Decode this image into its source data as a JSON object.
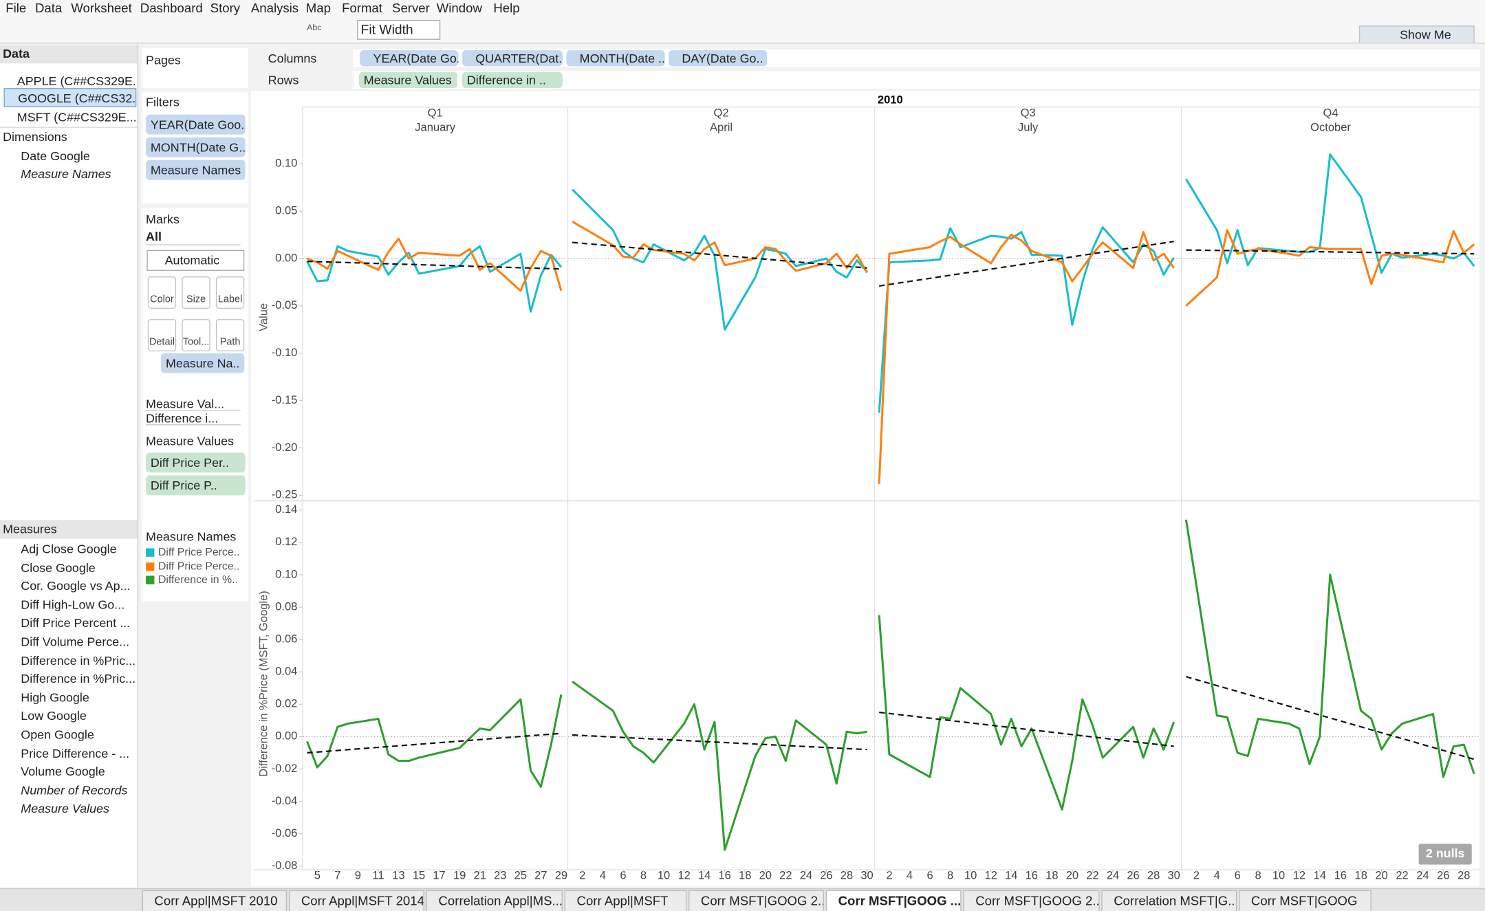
{
  "menu": [
    "File",
    "Data",
    "Worksheet",
    "Dashboard",
    "Story",
    "Analysis",
    "Map",
    "Format",
    "Server",
    "Window",
    "Help"
  ],
  "toolbar": {
    "fit": "Fit Width",
    "abc": "Abc",
    "show_me": "Show Me"
  },
  "data_pane": {
    "title": "Data",
    "sources": [
      "APPLE (C##CS329E...",
      "GOOGLE (C##CS32...",
      "MSFT (C##CS329E..."
    ],
    "dimensions_title": "Dimensions",
    "dimensions": [
      "Date Google",
      "Measure Names"
    ],
    "measures_title": "Measures",
    "measures": [
      "Adj Close Google",
      "Close Google",
      "Cor. Google vs Ap...",
      "Diff High-Low Go...",
      "Diff Price Percent ...",
      "Diff Volume Perce...",
      "Difference in %Pric...",
      "Difference in %Pric...",
      "High Google",
      "Low Google",
      "Open Google",
      "Price Difference - ...",
      "Volume Google",
      "Number of Records",
      "Measure Values"
    ]
  },
  "cards": {
    "pages": "Pages",
    "filters_title": "Filters",
    "filters": [
      "YEAR(Date Goo..",
      "MONTH(Date G..",
      "Measure Names"
    ],
    "marks_title": "Marks",
    "marks_all": "All",
    "mark_type": "Automatic",
    "mark_buttons": [
      "Color",
      "Size",
      "Label",
      "Detail",
      "Tool...",
      "Path"
    ],
    "marks_pill": "Measure Na..",
    "marks_layers": [
      "Measure Val...",
      "Difference i..."
    ],
    "measure_values_title": "Measure Values",
    "measure_values": [
      "Diff Price Per..",
      "Diff Price P.."
    ],
    "legend_title": "Measure Names"
  },
  "shelves": {
    "columns_label": "Columns",
    "columns": [
      "YEAR(Date Go..",
      "QUARTER(Dat..",
      "MONTH(Date ..",
      "DAY(Date Go.."
    ],
    "rows_label": "Rows",
    "rows": [
      "Measure Values",
      "Difference in .."
    ]
  },
  "tabs": [
    "Corr Appl|MSFT 2010",
    "Corr Appl|MSFT 2014",
    "Correlation Appl|MS...",
    "Corr Appl|MSFT",
    "Corr MSFT|GOOG 2...",
    "Corr MSFT|GOOG ...",
    "Corr MSFT|GOOG 2...",
    "Correlation MSFT|G...",
    "Corr MSFT|GOOG"
  ],
  "active_tab": 5,
  "chart_data": {
    "type": "line",
    "title": "2010",
    "y_label": "Value",
    "y2_label": "Difference in %Price (MSFT, Google)",
    "nulls_note": "2 nulls",
    "grid": false,
    "series": [
      {
        "name": "Diff Price Perce..",
        "color": "#17becf",
        "row": "top"
      },
      {
        "name": "Diff Price Perce..",
        "color": "#ff7f0e",
        "row": "top"
      },
      {
        "name": "Difference in %..",
        "color": "#2ca02c",
        "row": "bottom"
      }
    ],
    "ylim": [
      -0.255,
      0.128
    ],
    "yticks": [
      {
        "value": 0.1,
        "label": "0.10"
      },
      {
        "value": 0.05,
        "label": "0.05"
      },
      {
        "value": 0,
        "label": "0.00"
      },
      {
        "value": -0.05,
        "label": "-0.05"
      },
      {
        "value": -0.1,
        "label": "-0.10"
      },
      {
        "value": -0.15,
        "label": "-0.15"
      },
      {
        "value": -0.2,
        "label": "-0.20"
      },
      {
        "value": -0.25,
        "label": "-0.25"
      }
    ],
    "y2lim": [
      -0.082,
      0.145
    ],
    "y2ticks": [
      {
        "value": 0.14,
        "label": "0.14"
      },
      {
        "value": 0.12,
        "label": "0.12"
      },
      {
        "value": 0.1,
        "label": "0.10"
      },
      {
        "value": 0.08,
        "label": "0.08"
      },
      {
        "value": 0.06,
        "label": "0.06"
      },
      {
        "value": 0.04,
        "label": "0.04"
      },
      {
        "value": 0.02,
        "label": "0.02"
      },
      {
        "value": 0,
        "label": "0.00"
      },
      {
        "value": -0.02,
        "label": "-0.02"
      },
      {
        "value": -0.04,
        "label": "-0.04"
      },
      {
        "value": -0.06,
        "label": "-0.06"
      },
      {
        "value": -0.08,
        "label": "-0.08"
      }
    ],
    "panels": [
      {
        "quarter": "Q1",
        "month": "January",
        "xlim": [
          3.6,
          29.6
        ],
        "xticks": [
          5,
          7,
          9,
          11,
          13,
          15,
          17,
          19,
          21,
          23,
          25,
          27,
          29
        ],
        "x": [
          4,
          5,
          6,
          7,
          8,
          11,
          12,
          13,
          14,
          15,
          19,
          20,
          21,
          22,
          25,
          26,
          27,
          28,
          29
        ],
        "values": [
          [
            -0.003,
            -0.024,
            -0.023,
            0.013,
            0.008,
            0.002,
            -0.017,
            -0.004,
            0.006,
            -0.016,
            -0.008,
            0.005,
            0.013,
            -0.014,
            0.005,
            -0.056,
            -0.018,
            0.004,
            -0.009
          ],
          [
            0.0,
            -0.004,
            -0.011,
            0.008,
            0.003,
            -0.012,
            0.007,
            0.021,
            0.0,
            0.006,
            0.003,
            0.01,
            -0.012,
            -0.005,
            -0.034,
            -0.01,
            0.008,
            0.003,
            -0.034
          ],
          [
            -0.003,
            -0.019,
            -0.012,
            0.006,
            0.008,
            0.011,
            -0.011,
            -0.015,
            -0.015,
            -0.013,
            -0.007,
            -0.001,
            0.005,
            0.004,
            0.023,
            -0.021,
            -0.031,
            -0.005,
            0.026
          ]
        ],
        "trend_top": [
          -0.003,
          -0.011
        ],
        "trend_bottom": [
          -0.01,
          0.002
        ]
      },
      {
        "quarter": "Q2",
        "month": "April",
        "xlim": [
          0.6,
          30.7
        ],
        "xticks": [
          2,
          4,
          6,
          8,
          10,
          12,
          14,
          16,
          18,
          20,
          22,
          24,
          26,
          28,
          30
        ],
        "x": [
          1,
          5,
          6,
          7,
          8,
          9,
          12,
          13,
          14,
          15,
          16,
          19,
          20,
          21,
          22,
          23,
          26,
          27,
          28,
          29,
          30
        ],
        "values": [
          [
            0.073,
            0.03,
            0.008,
            0.0,
            -0.004,
            0.015,
            -0.002,
            0.006,
            0.024,
            0.003,
            -0.075,
            -0.02,
            0.01,
            0.008,
            0.005,
            -0.008,
            0.0,
            -0.014,
            -0.02,
            -0.002,
            -0.014
          ],
          [
            0.039,
            0.014,
            0.002,
            0.001,
            0.015,
            0.009,
            0.005,
            -0.002,
            0.01,
            0.017,
            -0.007,
            0.0,
            0.012,
            0.01,
            -0.002,
            -0.013,
            -0.005,
            0.005,
            -0.01,
            0.004,
            -0.015
          ],
          [
            0.034,
            0.016,
            0.003,
            -0.006,
            -0.01,
            -0.016,
            0.008,
            0.02,
            -0.008,
            0.009,
            -0.07,
            -0.012,
            -0.001,
            0.0,
            -0.015,
            0.01,
            -0.005,
            -0.029,
            0.003,
            0.002,
            0.003
          ]
        ],
        "trend_top": [
          0.017,
          -0.01
        ],
        "trend_bottom": [
          0.001,
          -0.008
        ]
      },
      {
        "quarter": "Q3",
        "month": "July",
        "xlim": [
          0.6,
          30.7
        ],
        "xticks": [
          2,
          4,
          6,
          8,
          10,
          12,
          14,
          16,
          18,
          20,
          22,
          24,
          26,
          28,
          30
        ],
        "x": [
          1,
          2,
          6,
          7,
          8,
          9,
          12,
          13,
          14,
          15,
          16,
          19,
          20,
          21,
          22,
          23,
          26,
          27,
          28,
          29,
          30
        ],
        "values": [
          [
            -0.163,
            -0.004,
            -0.002,
            -0.001,
            0.032,
            0.012,
            0.024,
            0.023,
            0.021,
            0.028,
            0.004,
            0.003,
            -0.07,
            -0.025,
            0.01,
            0.033,
            -0.004,
            0.015,
            0.008,
            -0.017,
            0.001
          ],
          [
            -0.238,
            0.005,
            0.012,
            0.018,
            0.023,
            0.015,
            -0.005,
            0.012,
            0.025,
            0.019,
            0.008,
            -0.004,
            -0.024,
            -0.01,
            0.005,
            0.017,
            -0.01,
            0.028,
            -0.002,
            0.005,
            -0.01
          ],
          [
            0.075,
            -0.011,
            -0.025,
            0.012,
            0.011,
            0.03,
            0.014,
            -0.005,
            0.011,
            -0.006,
            0.005,
            -0.045,
            -0.015,
            0.023,
            0.007,
            -0.013,
            0.006,
            -0.013,
            0.005,
            -0.008,
            0.009
          ]
        ],
        "trend_top": [
          -0.029,
          0.018
        ],
        "trend_bottom": [
          0.015,
          -0.006
        ]
      },
      {
        "quarter": "Q4",
        "month": "October",
        "xlim": [
          0.6,
          29.5
        ],
        "xticks": [
          2,
          4,
          6,
          8,
          10,
          12,
          14,
          16,
          18,
          20,
          22,
          24,
          26,
          28
        ],
        "x": [
          1,
          4,
          5,
          6,
          7,
          8,
          11,
          12,
          13,
          14,
          15,
          18,
          19,
          20,
          21,
          22,
          25,
          26,
          27,
          28,
          29
        ],
        "values": [
          [
            0.084,
            0.03,
            -0.005,
            0.03,
            -0.007,
            0.011,
            0.008,
            0.007,
            0.007,
            0.011,
            0.11,
            0.065,
            0.025,
            -0.015,
            0.005,
            0.001,
            0.005,
            0.003,
            0.0,
            0.006,
            -0.008
          ],
          [
            -0.05,
            -0.02,
            0.03,
            0.005,
            0.008,
            0.01,
            0.005,
            0.003,
            0.012,
            0.011,
            0.01,
            0.01,
            -0.027,
            0.003,
            0.005,
            0.004,
            -0.002,
            -0.004,
            0.029,
            0.006,
            0.015
          ],
          [
            0.134,
            0.013,
            0.012,
            -0.01,
            -0.012,
            0.011,
            0.008,
            0.005,
            -0.017,
            0.0,
            0.1,
            0.016,
            0.011,
            -0.008,
            0.002,
            0.008,
            0.014,
            -0.025,
            -0.006,
            -0.005,
            -0.023
          ]
        ],
        "trend_top": [
          0.009,
          0.005
        ],
        "trend_bottom": [
          0.037,
          -0.014
        ]
      }
    ]
  }
}
